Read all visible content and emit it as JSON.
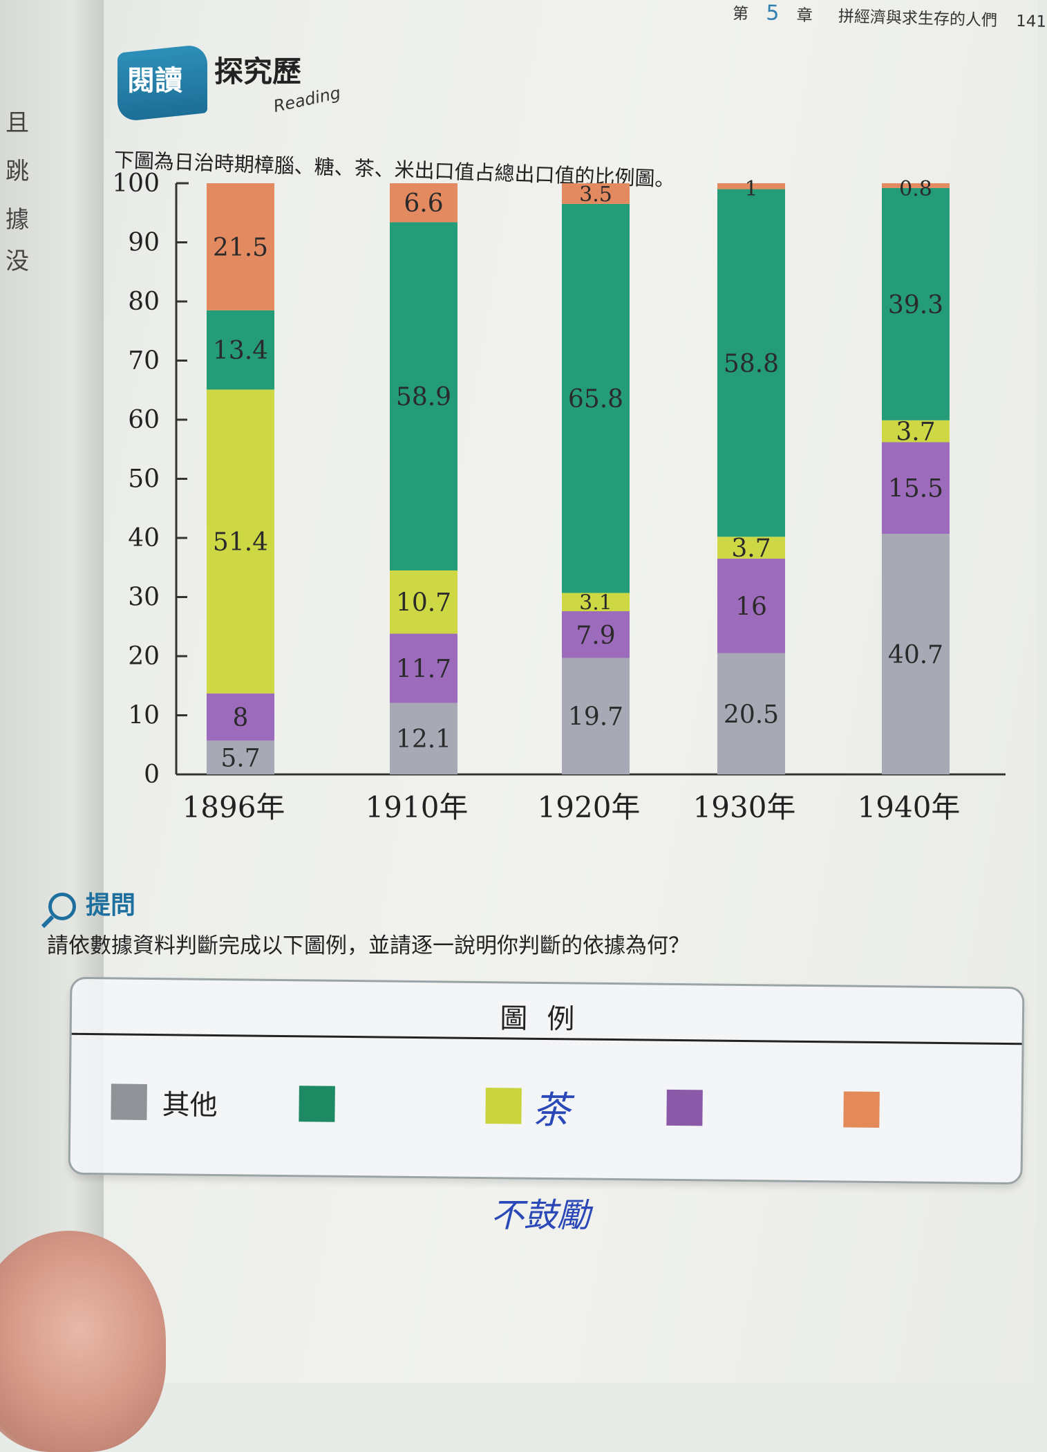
{
  "header": {
    "chapter_prefix": "第",
    "chapter_num": "5",
    "chapter_suffix": "章",
    "chapter_title": "拼經濟與求生存的人們",
    "page_number": "141"
  },
  "left_page_chars": [
    "且",
    "跳",
    "據",
    "没"
  ],
  "badge": {
    "label": "閱讀",
    "topic": "探究歷",
    "reading": "Reading"
  },
  "caption": "下圖為日治時期樟腦、糖、茶、米出口值占總出口值的比例圖。",
  "chart_data": {
    "type": "bar",
    "stacked": true,
    "categories": [
      "1896年",
      "1910年",
      "1920年",
      "1930年",
      "1940年"
    ],
    "ylim": [
      0,
      100
    ],
    "yticks": [
      0,
      10,
      20,
      30,
      40,
      50,
      60,
      70,
      80,
      90,
      100
    ],
    "grid": false,
    "series": [
      {
        "name": "其他",
        "color": "#a7aab4",
        "values": [
          5.7,
          12.1,
          19.7,
          20.5,
          40.7
        ]
      },
      {
        "color": "#9d6bbb",
        "values": [
          8,
          11.7,
          7.9,
          16,
          15.5
        ]
      },
      {
        "name": "茶",
        "color": "#ced844",
        "values": [
          51.4,
          10.7,
          3.1,
          3.7,
          3.7
        ]
      },
      {
        "color": "#249c78",
        "values": [
          13.4,
          58.9,
          65.8,
          58.8,
          39.3
        ]
      },
      {
        "color": "#e48a61",
        "values": [
          21.5,
          6.6,
          3.5,
          1,
          0.8
        ]
      }
    ]
  },
  "question": {
    "heading": "提問",
    "text": "請依數據資料判斷完成以下圖例，並請逐一說明你判斷的依據為何？"
  },
  "legend": {
    "title": "圖例",
    "items": [
      {
        "label": "其他",
        "color": "#8f9297"
      },
      {
        "label": "",
        "color": "#1e8a63"
      },
      {
        "label": "茶",
        "color": "#c9d43c"
      },
      {
        "label": "",
        "color": "#8a5aa8"
      },
      {
        "label": "",
        "color": "#e48a58"
      }
    ],
    "handwritten_note": "不鼓勵"
  }
}
